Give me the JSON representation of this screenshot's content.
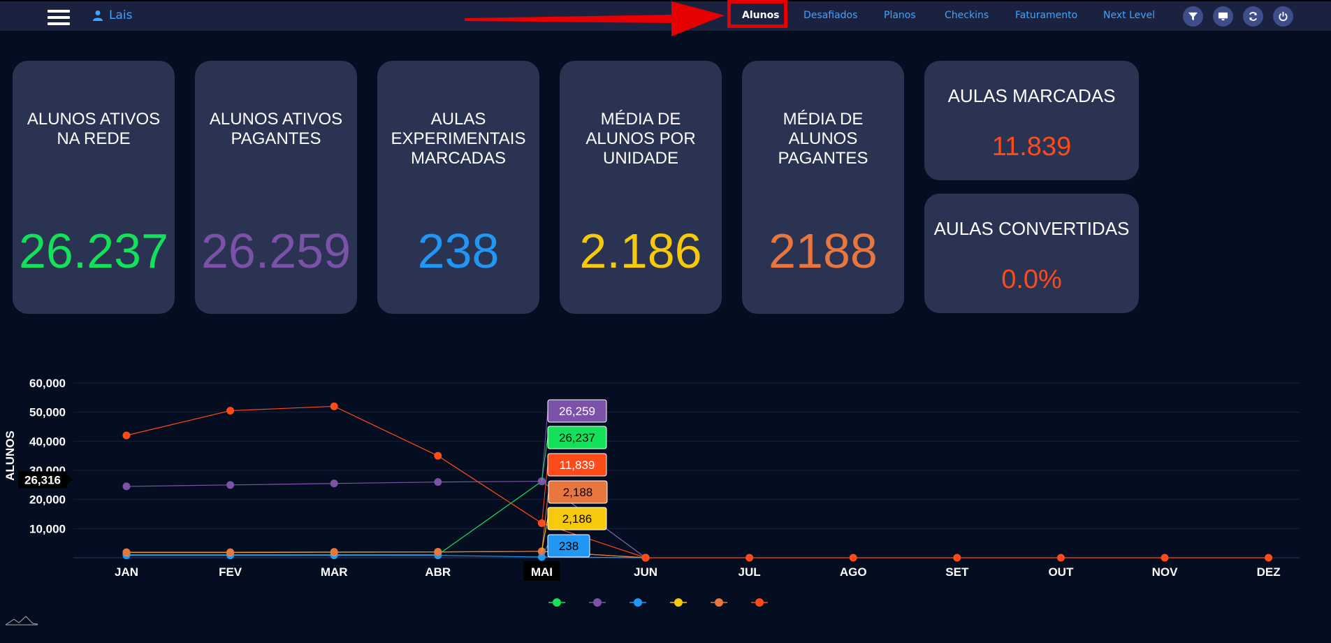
{
  "header": {
    "user_name": "Lais",
    "nav": [
      {
        "label": "Alunos",
        "active": true
      },
      {
        "label": "Desafiados",
        "active": false
      },
      {
        "label": "Planos",
        "active": false
      },
      {
        "label": "Checkins",
        "active": false
      },
      {
        "label": "Faturamento",
        "active": false
      },
      {
        "label": "Next Level",
        "active": false
      }
    ],
    "icons": [
      "filter-icon",
      "monitor-icon",
      "refresh-icon",
      "power-icon"
    ]
  },
  "cards": [
    {
      "title": "ALUNOS ATIVOS NA REDE",
      "value": "26.237",
      "color": "#14e05a"
    },
    {
      "title": "ALUNOS ATIVOS PAGANTES",
      "value": "26.259",
      "color": "#7c52a8"
    },
    {
      "title": "AULAS EXPERIMENTAIS MARCADAS",
      "value": "238",
      "color": "#2196f3"
    },
    {
      "title": "MÉDIA DE ALUNOS POR UNIDADE",
      "value": "2.186",
      "color": "#f7c90c"
    },
    {
      "title": "MÉDIA DE ALUNOS PAGANTES",
      "value": "2188",
      "color": "#e8763f"
    }
  ],
  "small_cards": [
    {
      "title": "AULAS MARCADAS",
      "value": "11.839",
      "color": "#ff4a1a"
    },
    {
      "title": "AULAS CONVERTIDAS",
      "value": "0.0%",
      "color": "#ff4a1a"
    }
  ],
  "chart_data": {
    "type": "line",
    "ylabel": "ALUNOS",
    "ylim": [
      0,
      60000
    ],
    "y_ticks": [
      "60,000",
      "50,000",
      "40,000",
      "30,000",
      "20,000",
      "10,000"
    ],
    "categories": [
      "JAN",
      "FEV",
      "MAR",
      "ABR",
      "MAI",
      "JUN",
      "JUL",
      "AGO",
      "SET",
      "OUT",
      "NOV",
      "DEZ"
    ],
    "highlighted_category": "MAI",
    "crosshair_value_label": "26,316",
    "grid": true,
    "legend_position": "bottom",
    "series": [
      {
        "color": "#14e05a",
        "values": [
          1000,
          1000,
          1000,
          1000,
          26237,
          0,
          null,
          null,
          null,
          null,
          null,
          null
        ],
        "tooltip": "26,237"
      },
      {
        "color": "#7c52a8",
        "values": [
          24500,
          25000,
          25500,
          26000,
          26259,
          0,
          null,
          null,
          null,
          null,
          null,
          null
        ],
        "tooltip": "26,259"
      },
      {
        "color": "#2196f3",
        "values": [
          800,
          800,
          800,
          800,
          238,
          0,
          null,
          null,
          null,
          null,
          null,
          null
        ],
        "tooltip": "238"
      },
      {
        "color": "#f7c90c",
        "values": [
          1800,
          1800,
          1900,
          2000,
          2186,
          0,
          null,
          null,
          null,
          null,
          null,
          null
        ],
        "tooltip": "2,186"
      },
      {
        "color": "#e8763f",
        "values": [
          1900,
          1900,
          2000,
          2000,
          2188,
          0,
          null,
          null,
          null,
          null,
          null,
          null
        ],
        "tooltip": "2,188"
      },
      {
        "color": "#ff4a1a",
        "values": [
          42000,
          50500,
          52000,
          35000,
          11839,
          0,
          0,
          0,
          0,
          0,
          0,
          0
        ],
        "tooltip": "11,839"
      }
    ]
  }
}
